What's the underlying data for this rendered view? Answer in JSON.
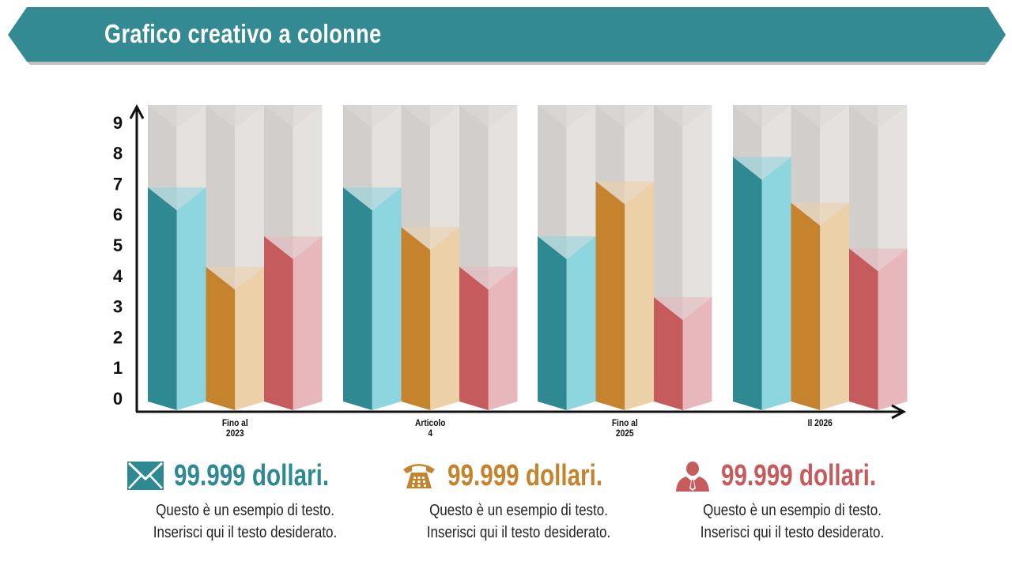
{
  "title": "Grafico  creativo  a colonne",
  "colors": {
    "banner": "#338a93",
    "teal_dark": "#2e8993",
    "teal_light": "#8dd6e0",
    "orange_dark": "#c5832e",
    "orange_light": "#ecd0a8",
    "red_dark": "#c65b5d",
    "red_light": "#e8b7bc",
    "track_dark": "#d2cecb",
    "track_light": "#e4e1de",
    "axis": "#111111"
  },
  "chart_data": {
    "type": "bar",
    "categories": [
      [
        "Fino al",
        "2023"
      ],
      [
        "Articolo",
        "4"
      ],
      [
        "Fino al",
        "2025"
      ],
      [
        "Il 2026"
      ]
    ],
    "series": [
      {
        "values": [
          7.3,
          7.3,
          5.7,
          8.3
        ],
        "color": "teal"
      },
      {
        "values": [
          4.7,
          6.0,
          7.5,
          6.8
        ],
        "color": "orange"
      },
      {
        "values": [
          5.7,
          4.7,
          3.7,
          5.3
        ],
        "color": "red"
      }
    ],
    "y_ticks": [
      "0",
      "1",
      "2",
      "3",
      "4",
      "5",
      "6",
      "7",
      "8",
      "9"
    ],
    "ylim": [
      0,
      10
    ],
    "grid": false,
    "legend": "none"
  },
  "stats": [
    {
      "value": "99.999 dollari.",
      "line1": "Questo è un esempio di testo.",
      "line2": "Inserisci qui il testo desiderato.",
      "icon": "envelope-icon",
      "color": "#2e8993"
    },
    {
      "value": "99.999 dollari.",
      "line1": "Questo è un esempio di testo.",
      "line2": "Inserisci qui il testo desiderato.",
      "icon": "telephone-icon",
      "color": "#c5832e"
    },
    {
      "value": "99.999 dollari.",
      "line1": "Questo è un esempio di testo.",
      "line2": "Inserisci qui il testo desiderato.",
      "icon": "businessman-icon",
      "color": "#c65b5d"
    }
  ]
}
